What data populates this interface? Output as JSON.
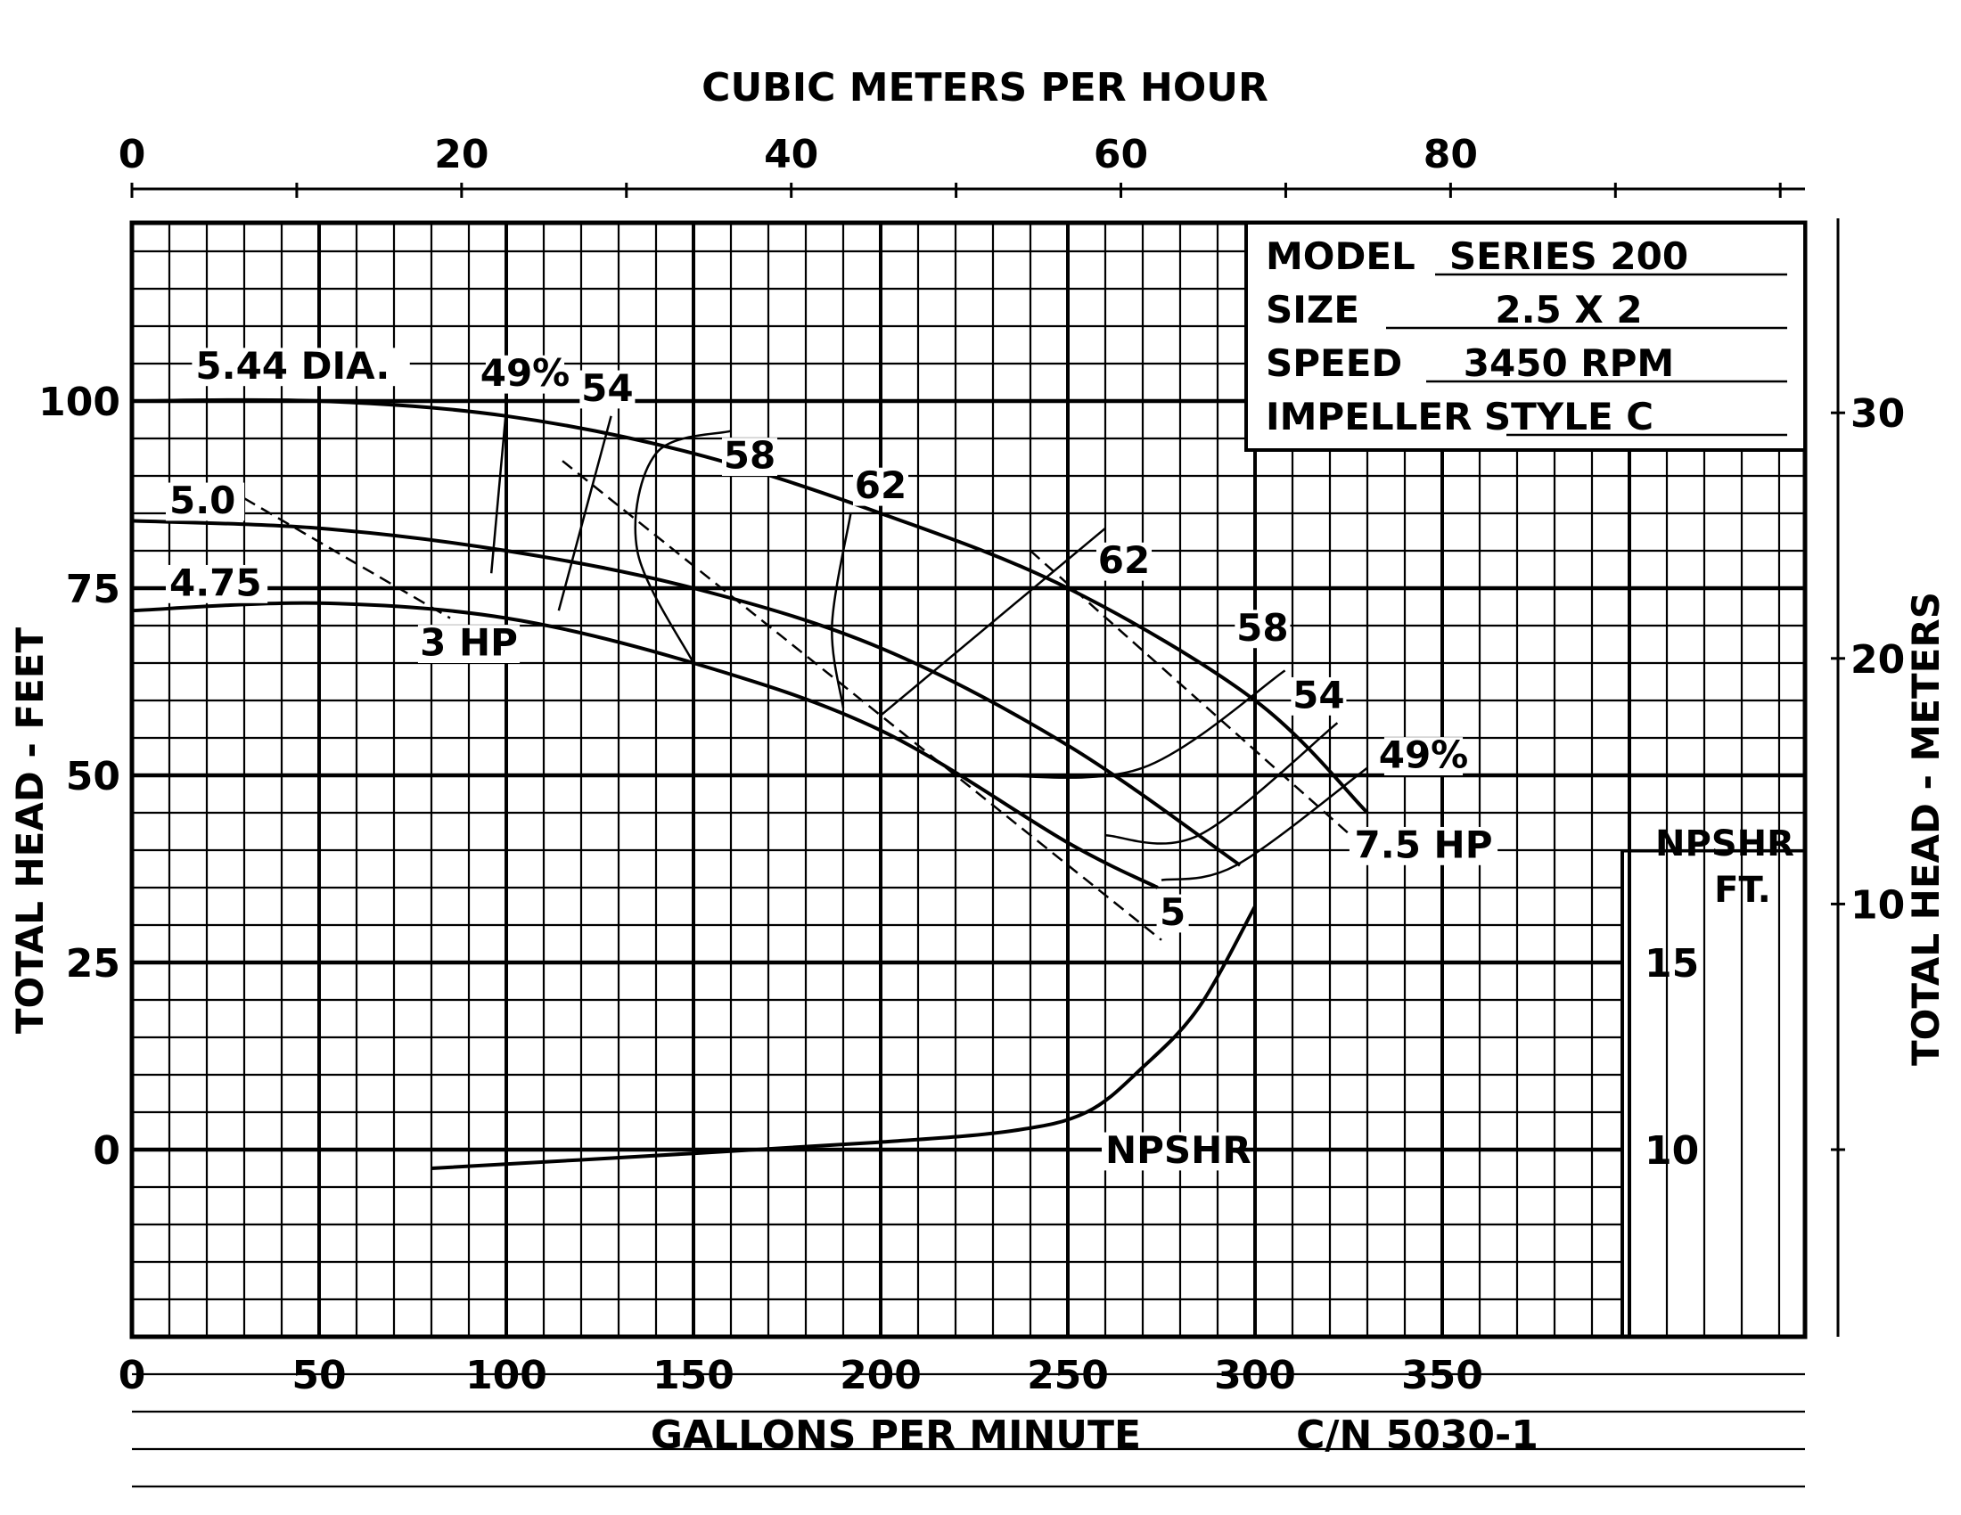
{
  "chart_data": {
    "type": "line",
    "title": "CUBIC METERS PER HOUR",
    "xlabel": "GALLONS PER MINUTE",
    "ylabel": "TOTAL HEAD - FEET",
    "ylabel_right": "TOTAL HEAD - METERS",
    "top_axis_label": "CUBIC METERS PER HOUR",
    "code": "C/N 5030-1",
    "xlim": [
      0,
      450
    ],
    "ylim": [
      -50,
      125
    ],
    "grid": true,
    "x_ticks": [
      "0",
      "50",
      "100",
      "150",
      "200",
      "250",
      "300",
      "350"
    ],
    "y_ticks": [
      "0",
      "25",
      "50",
      "75",
      "100"
    ],
    "top_ticks": [
      "0",
      "20",
      "40",
      "60",
      "80"
    ],
    "right_ticks": [
      "10",
      "20",
      "30"
    ],
    "npshr_ticks": [
      "10",
      "15"
    ],
    "npshr_axis_label": [
      "NPSHR",
      "FT."
    ],
    "spec_box": {
      "rows": [
        {
          "label": "MODEL",
          "value": "SERIES 200"
        },
        {
          "label": "SIZE",
          "value": "2.5 X 2"
        },
        {
          "label": "SPEED",
          "value": "3450 RPM"
        },
        {
          "label": "IMPELLER",
          "value": "STYLE C"
        }
      ]
    },
    "series": [
      {
        "name": "5.44 DIA.",
        "x": [
          0,
          50,
          100,
          150,
          200,
          250,
          300,
          330
        ],
        "y": [
          100,
          100,
          98,
          93,
          85,
          75,
          60,
          45
        ]
      },
      {
        "name": "5.0",
        "x": [
          0,
          50,
          100,
          150,
          200,
          250,
          296
        ],
        "y": [
          84,
          83,
          80,
          75,
          67,
          54,
          38
        ]
      },
      {
        "name": "4.75",
        "x": [
          0,
          50,
          100,
          150,
          200,
          250,
          274
        ],
        "y": [
          72,
          73,
          71,
          65,
          56,
          41,
          35
        ]
      },
      {
        "name": "NPSHR",
        "x": [
          80,
          150,
          200,
          235,
          255,
          270,
          285,
          300
        ],
        "y": [
          9.5,
          9.9,
          10.2,
          10.5,
          11.0,
          12.2,
          13.8,
          16.5
        ]
      }
    ],
    "efficiency_labels": [
      "49%",
      "54",
      "58",
      "62",
      "62",
      "58",
      "54",
      "49%"
    ],
    "hp_labels": [
      "3 HP",
      "5",
      "7.5 HP"
    ]
  }
}
